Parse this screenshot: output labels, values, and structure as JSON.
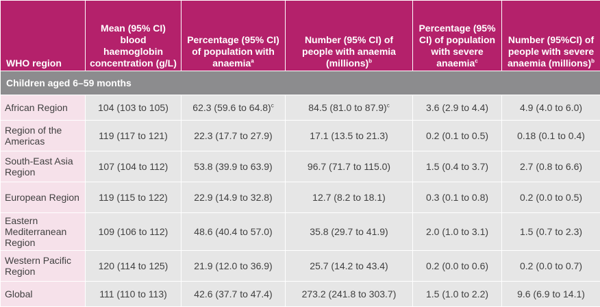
{
  "table": {
    "headers": [
      {
        "text": "WHO region",
        "sup": ""
      },
      {
        "text": "Mean (95% CI) blood haemoglobin concentration (g/L)",
        "sup": ""
      },
      {
        "text": "Percentage (95% CI) of population with anaemia",
        "sup": "a"
      },
      {
        "text": "Number (95% CI) of people with anaemia (millions)",
        "sup": "b"
      },
      {
        "text": "Percentage (95% CI) of population with severe anaemia",
        "sup": "c"
      },
      {
        "text": "Number (95%CI) of people with severe anaemia (millions)",
        "sup": "b"
      }
    ],
    "section_title": "Children aged 6–59 months",
    "rows": [
      {
        "region": "African Region",
        "cells": [
          {
            "v": "104 (103 to 105)",
            "sup": ""
          },
          {
            "v": "62.3 (59.6 to 64.8)",
            "sup": "c"
          },
          {
            "v": "84.5 (81.0 to 87.9)",
            "sup": "c"
          },
          {
            "v": "3.6 (2.9 to 4.4)",
            "sup": ""
          },
          {
            "v": "4.9 (4.0 to 6.0)",
            "sup": ""
          }
        ]
      },
      {
        "region": "Region of the Americas",
        "cells": [
          {
            "v": "119 (117 to 121)",
            "sup": ""
          },
          {
            "v": "22.3 (17.7 to 27.9)",
            "sup": ""
          },
          {
            "v": "17.1 (13.5 to 21.3)",
            "sup": ""
          },
          {
            "v": "0.2 (0.1 to 0.5)",
            "sup": ""
          },
          {
            "v": "0.18 (0.1 to 0.4)",
            "sup": ""
          }
        ]
      },
      {
        "region": "South-East Asia Region",
        "cells": [
          {
            "v": "107 (104 to 112)",
            "sup": ""
          },
          {
            "v": "53.8 (39.9 to 63.9)",
            "sup": ""
          },
          {
            "v": "96.7 (71.7 to 115.0)",
            "sup": ""
          },
          {
            "v": "1.5 (0.4 to 3.7)",
            "sup": ""
          },
          {
            "v": "2.7 (0.8 to 6.6)",
            "sup": ""
          }
        ]
      },
      {
        "region": "European Region",
        "cells": [
          {
            "v": "119 (115 to 122)",
            "sup": ""
          },
          {
            "v": "22.9 (14.9 to 32.8)",
            "sup": ""
          },
          {
            "v": "12.7 (8.2 to 18.1)",
            "sup": ""
          },
          {
            "v": "0.3 (0.1 to 0.8)",
            "sup": ""
          },
          {
            "v": "0.2 (0.0 to 0.5)",
            "sup": ""
          }
        ]
      },
      {
        "region": "Eastern Mediterranean Region",
        "cells": [
          {
            "v": "109 (106 to 112)",
            "sup": ""
          },
          {
            "v": "48.6 (40.4 to 57.0)",
            "sup": ""
          },
          {
            "v": "35.8 (29.7 to 41.9)",
            "sup": ""
          },
          {
            "v": "2.0 (1.0 to 3.1)",
            "sup": ""
          },
          {
            "v": "1.5 (0.7 to 2.3)",
            "sup": ""
          }
        ]
      },
      {
        "region": "Western Pacific Region",
        "cells": [
          {
            "v": "120 (114 to 125)",
            "sup": ""
          },
          {
            "v": "21.9 (12.0 to 36.9)",
            "sup": ""
          },
          {
            "v": "25.7 (14.2 to 43.4)",
            "sup": ""
          },
          {
            "v": "0.2 (0.0 to 0.6)",
            "sup": ""
          },
          {
            "v": "0.2 (0.0 to 0.7)",
            "sup": ""
          }
        ]
      },
      {
        "region": "Global",
        "cells": [
          {
            "v": "111 (110 to 113)",
            "sup": ""
          },
          {
            "v": "42.6 (37.7 to 47.4)",
            "sup": ""
          },
          {
            "v": "273.2 (241.8 to 303.7)",
            "sup": ""
          },
          {
            "v": "1.5 (1.0 to 2.2)",
            "sup": ""
          },
          {
            "v": "9.6 (6.9 to 14.1)",
            "sup": ""
          }
        ]
      }
    ]
  }
}
